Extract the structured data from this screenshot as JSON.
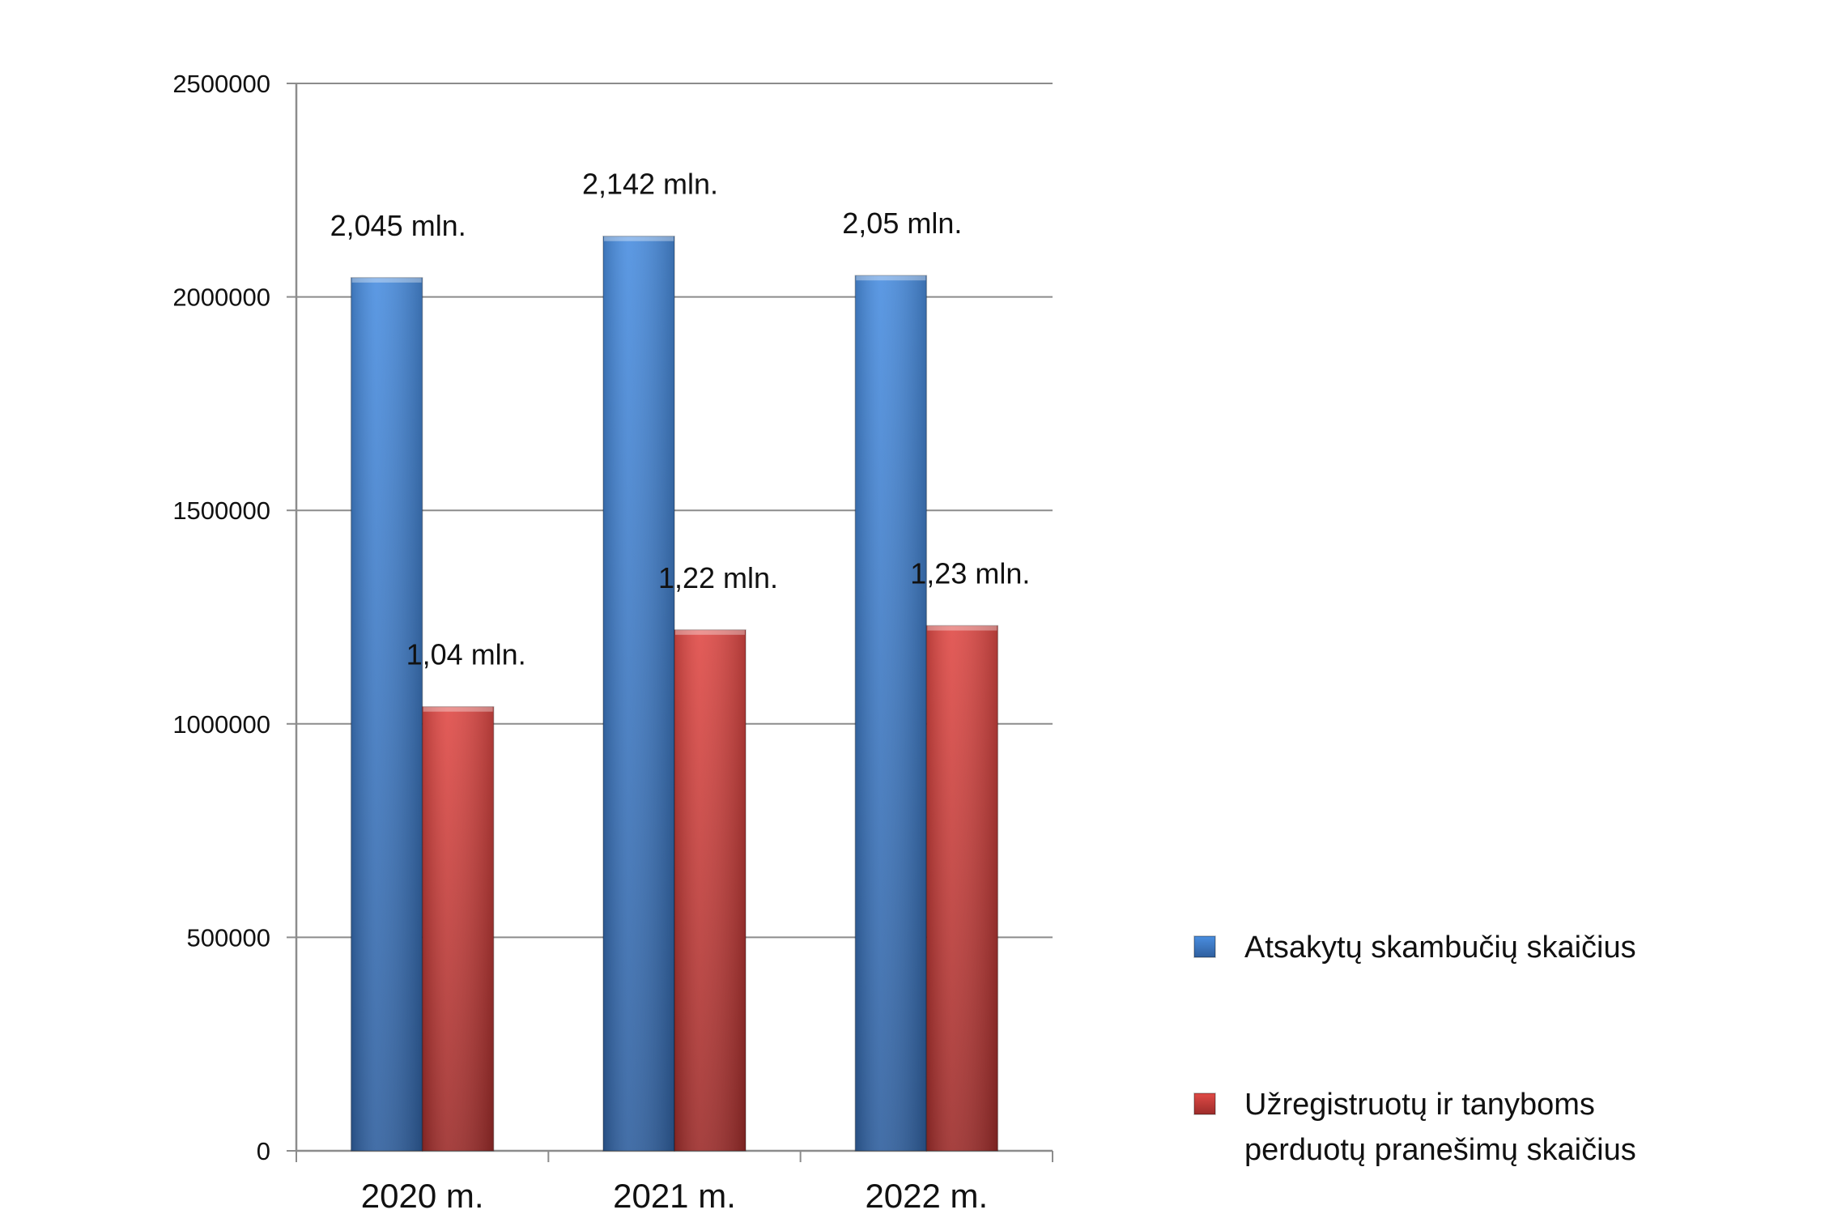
{
  "chart_data": {
    "type": "bar",
    "categories": [
      "2020 m.",
      "2021 m.",
      "2022 m."
    ],
    "ylim": [
      0,
      2500000
    ],
    "yticks": [
      0,
      500000,
      1000000,
      1500000,
      2000000,
      2500000
    ],
    "ytick_labels": [
      "0",
      "500000",
      "1000000",
      "1500000",
      "2000000",
      "2500000"
    ],
    "grid": true,
    "legend_position": "right",
    "series": [
      {
        "name": "Atsakytų skambučių skaičius",
        "values": [
          2045000,
          2142000,
          2050000
        ],
        "labels": [
          "2,045 mln.",
          "2,142 mln.",
          "2,05 mln."
        ],
        "color": "#3f7fd0"
      },
      {
        "name": "Užregistruotų ir tanyboms perduotų pranešimų skaičius",
        "name_lines": [
          "Užregistruotų ir tanyboms",
          "perduotų pranešimų skaičius"
        ],
        "values": [
          1040000,
          1220000,
          1230000
        ],
        "labels": [
          "1,04 mln.",
          "1,22 mln.",
          "1,23 mln."
        ],
        "color": "#d04240"
      }
    ]
  }
}
